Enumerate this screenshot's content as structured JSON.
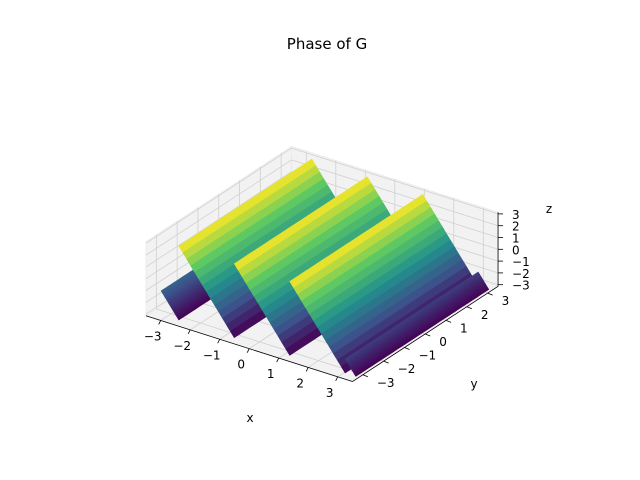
{
  "chart_data": {
    "type": "surface3d",
    "title": "Phase of G",
    "xlabel": "x",
    "ylabel": "y",
    "zlabel": "z",
    "xlim": [
      -3.5,
      3.5
    ],
    "ylim": [
      -3.5,
      3.5
    ],
    "zlim": [
      -3.14,
      3.14
    ],
    "x_ticks": [
      "−3",
      "−2",
      "−1",
      "0",
      "1",
      "2",
      "3"
    ],
    "y_ticks": [
      "−3",
      "−2",
      "−1",
      "0",
      "1",
      "2",
      "3"
    ],
    "z_ticks": [
      "−3",
      "−2",
      "−1",
      "0",
      "1",
      "2",
      "3"
    ],
    "colormap": "viridis",
    "colormap_stops": [
      "#440154",
      "#3b528b",
      "#21918c",
      "#5ec962",
      "#fde725"
    ],
    "pane_color": "#f2f2f2",
    "grid": true,
    "phase_segments": [
      {
        "x_min": -3.2,
        "x_max": -2.6
      },
      {
        "x_min": -2.6,
        "x_max": -0.72
      },
      {
        "x_min": -0.72,
        "x_max": 1.16
      },
      {
        "x_min": 1.16,
        "x_max": 3.04
      },
      {
        "x_min": 3.04,
        "x_max": 3.4
      }
    ]
  }
}
